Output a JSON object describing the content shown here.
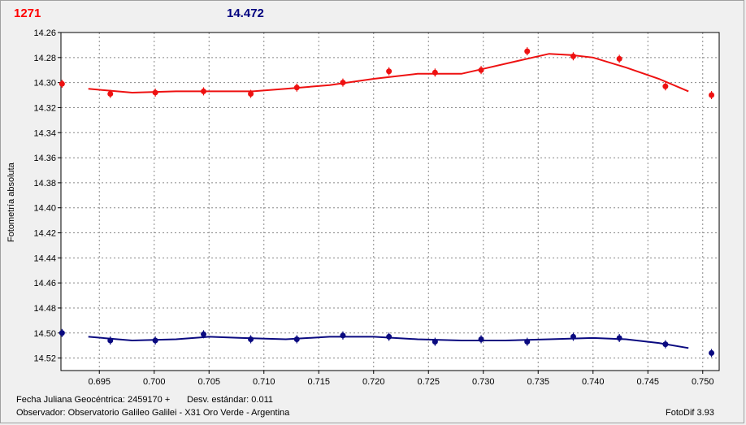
{
  "header": {
    "object_id": "1271",
    "magnitude": "14.472"
  },
  "footer": {
    "jd": "Fecha Juliana Geocéntrica: 2459170 +",
    "std": "Desv. estándar: 0.011",
    "observer": "Observador: Observatorio Galileo Galilei - X31 Oro Verde - Argentina",
    "software": "FotoDif 3.93"
  },
  "colors": {
    "series1": "#ee1111",
    "series2": "#0a0a80",
    "grid": "#888888",
    "background": "#ffffff"
  },
  "chart_data": {
    "type": "scatter",
    "title": "",
    "xlabel": "",
    "ylabel": "Fotometría absoluta",
    "xlim": [
      0.6915,
      0.7515
    ],
    "ylim": [
      14.26,
      14.53
    ],
    "y_inverted": true,
    "grid": true,
    "x_ticks": [
      "0.695",
      "0.700",
      "0.705",
      "0.710",
      "0.715",
      "0.720",
      "0.725",
      "0.730",
      "0.735",
      "0.740",
      "0.745",
      "0.750"
    ],
    "y_ticks": [
      "14.26",
      "14.28",
      "14.30",
      "14.32",
      "14.34",
      "14.36",
      "14.38",
      "14.40",
      "14.42",
      "14.44",
      "14.46",
      "14.48",
      "14.50",
      "14.52"
    ],
    "series": [
      {
        "points": [
          [
            0.6916,
            14.301
          ],
          [
            0.696,
            14.309
          ],
          [
            0.7001,
            14.308
          ],
          [
            0.7045,
            14.307
          ],
          [
            0.7088,
            14.309
          ],
          [
            0.713,
            14.304
          ],
          [
            0.7172,
            14.3
          ],
          [
            0.7214,
            14.291
          ],
          [
            0.7256,
            14.292
          ],
          [
            0.7298,
            14.29
          ],
          [
            0.734,
            14.275
          ],
          [
            0.7382,
            14.279
          ],
          [
            0.7424,
            14.281
          ],
          [
            0.7466,
            14.303
          ],
          [
            0.7508,
            14.31
          ]
        ],
        "fit": [
          [
            0.694,
            14.305
          ],
          [
            0.698,
            14.308
          ],
          [
            0.702,
            14.307
          ],
          [
            0.706,
            14.307
          ],
          [
            0.709,
            14.307
          ],
          [
            0.712,
            14.305
          ],
          [
            0.716,
            14.302
          ],
          [
            0.72,
            14.297
          ],
          [
            0.724,
            14.293
          ],
          [
            0.728,
            14.293
          ],
          [
            0.73,
            14.289
          ],
          [
            0.733,
            14.283
          ],
          [
            0.736,
            14.277
          ],
          [
            0.738,
            14.278
          ],
          [
            0.74,
            14.28
          ],
          [
            0.743,
            14.288
          ],
          [
            0.746,
            14.297
          ],
          [
            0.7487,
            14.307
          ]
        ]
      },
      {
        "points": [
          [
            0.6916,
            14.5
          ],
          [
            0.696,
            14.506
          ],
          [
            0.7001,
            14.506
          ],
          [
            0.7045,
            14.501
          ],
          [
            0.7088,
            14.505
          ],
          [
            0.713,
            14.505
          ],
          [
            0.7172,
            14.502
          ],
          [
            0.7214,
            14.503
          ],
          [
            0.7256,
            14.507
          ],
          [
            0.7298,
            14.505
          ],
          [
            0.734,
            14.507
          ],
          [
            0.7382,
            14.503
          ],
          [
            0.7424,
            14.504
          ],
          [
            0.7466,
            14.509
          ],
          [
            0.7508,
            14.516
          ]
        ],
        "fit": [
          [
            0.694,
            14.503
          ],
          [
            0.698,
            14.506
          ],
          [
            0.702,
            14.505
          ],
          [
            0.705,
            14.503
          ],
          [
            0.708,
            14.504
          ],
          [
            0.712,
            14.505
          ],
          [
            0.716,
            14.503
          ],
          [
            0.72,
            14.503
          ],
          [
            0.724,
            14.505
          ],
          [
            0.728,
            14.506
          ],
          [
            0.732,
            14.506
          ],
          [
            0.736,
            14.505
          ],
          [
            0.74,
            14.504
          ],
          [
            0.743,
            14.505
          ],
          [
            0.746,
            14.508
          ],
          [
            0.7487,
            14.512
          ]
        ]
      }
    ]
  }
}
